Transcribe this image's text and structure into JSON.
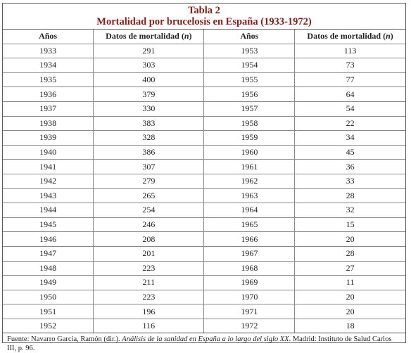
{
  "table": {
    "title": "Tabla 2",
    "subtitle": "Mortalidad por brucelosis en España (1933-1972)",
    "headers": {
      "years_left": "Años",
      "data_left_prefix": "Datos de mortalidad (",
      "data_left_unit": "n",
      "data_left_suffix": ")",
      "years_right": "Años",
      "data_right_prefix": "Datos de mortalidad (",
      "data_right_unit": "n",
      "data_right_suffix": ")"
    },
    "rows": [
      {
        "y1": "1933",
        "v1": "291",
        "y2": "1953",
        "v2": "113"
      },
      {
        "y1": "1934",
        "v1": "303",
        "y2": "1954",
        "v2": "73"
      },
      {
        "y1": "1935",
        "v1": "400",
        "y2": "1955",
        "v2": "77"
      },
      {
        "y1": "1936",
        "v1": "379",
        "y2": "1956",
        "v2": "64"
      },
      {
        "y1": "1937",
        "v1": "330",
        "y2": "1957",
        "v2": "54"
      },
      {
        "y1": "1938",
        "v1": "383",
        "y2": "1958",
        "v2": "22"
      },
      {
        "y1": "1939",
        "v1": "328",
        "y2": "1959",
        "v2": "34"
      },
      {
        "y1": "1940",
        "v1": "386",
        "y2": "1960",
        "v2": "45"
      },
      {
        "y1": "1941",
        "v1": "307",
        "y2": "1961",
        "v2": "36"
      },
      {
        "y1": "1942",
        "v1": "279",
        "y2": "1962",
        "v2": "33"
      },
      {
        "y1": "1943",
        "v1": "265",
        "y2": "1963",
        "v2": "28"
      },
      {
        "y1": "1944",
        "v1": "254",
        "y2": "1964",
        "v2": "32"
      },
      {
        "y1": "1945",
        "v1": "246",
        "y2": "1965",
        "v2": "15"
      },
      {
        "y1": "1946",
        "v1": "208",
        "y2": "1966",
        "v2": "20"
      },
      {
        "y1": "1947",
        "v1": "201",
        "y2": "1967",
        "v2": "28"
      },
      {
        "y1": "1948",
        "v1": "223",
        "y2": "1968",
        "v2": "27"
      },
      {
        "y1": "1949",
        "v1": "211",
        "y2": "1969",
        "v2": "11"
      },
      {
        "y1": "1950",
        "v1": "223",
        "y2": "1970",
        "v2": "20"
      },
      {
        "y1": "1951",
        "v1": "196",
        "y2": "1971",
        "v2": "20"
      },
      {
        "y1": "1952",
        "v1": "116",
        "y2": "1972",
        "v2": "18"
      }
    ],
    "source_prefix": "Fuente: Navarro García, Ramón (dir.). ",
    "source_title": "Análisis de la sanidad en España a lo largo del siglo XX",
    "source_suffix": ". Madrid: Instituto de Salud Carlos III, p. 96.",
    "title_color": "#8b1a1a"
  }
}
